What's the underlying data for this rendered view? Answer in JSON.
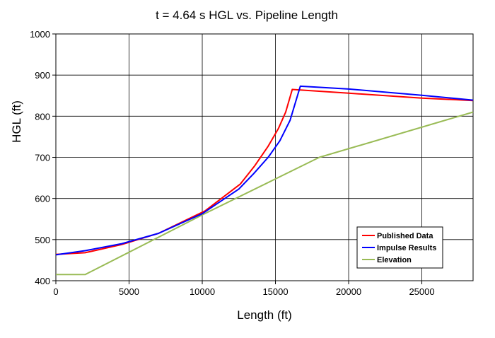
{
  "chart_data": {
    "type": "line",
    "title": "t = 4.64 s HGL vs. Pipeline Length",
    "xlabel": "Length (ft)",
    "ylabel": "HGL (ft)",
    "xlim": [
      0,
      28500
    ],
    "ylim": [
      400,
      1000
    ],
    "xticks": [
      0,
      5000,
      10000,
      15000,
      20000,
      25000
    ],
    "yticks": [
      400,
      500,
      600,
      700,
      800,
      900,
      1000
    ],
    "grid": true,
    "legend_position": "bottom-right",
    "series": [
      {
        "name": "Published Data",
        "color": "#ff0000",
        "points": [
          [
            0,
            464
          ],
          [
            2000,
            468
          ],
          [
            4500,
            488
          ],
          [
            7000,
            515
          ],
          [
            10200,
            570
          ],
          [
            12600,
            635
          ],
          [
            13600,
            680
          ],
          [
            14500,
            727
          ],
          [
            15200,
            770
          ],
          [
            15700,
            810
          ],
          [
            16150,
            865
          ],
          [
            20000,
            856
          ],
          [
            25000,
            844
          ],
          [
            28500,
            838
          ]
        ]
      },
      {
        "name": "Impulse Results",
        "color": "#0000ff",
        "points": [
          [
            0,
            463
          ],
          [
            2000,
            473
          ],
          [
            4500,
            490
          ],
          [
            7000,
            515
          ],
          [
            10000,
            563
          ],
          [
            12500,
            623
          ],
          [
            13500,
            660
          ],
          [
            14500,
            700
          ],
          [
            15300,
            740
          ],
          [
            16000,
            790
          ],
          [
            16700,
            873
          ],
          [
            20000,
            866
          ],
          [
            25000,
            851
          ],
          [
            28500,
            839
          ]
        ]
      },
      {
        "name": "Elevation",
        "color": "#99bb55",
        "points": [
          [
            0,
            415
          ],
          [
            2000,
            415
          ],
          [
            10000,
            560
          ],
          [
            18000,
            700
          ],
          [
            28500,
            810
          ]
        ]
      }
    ]
  }
}
